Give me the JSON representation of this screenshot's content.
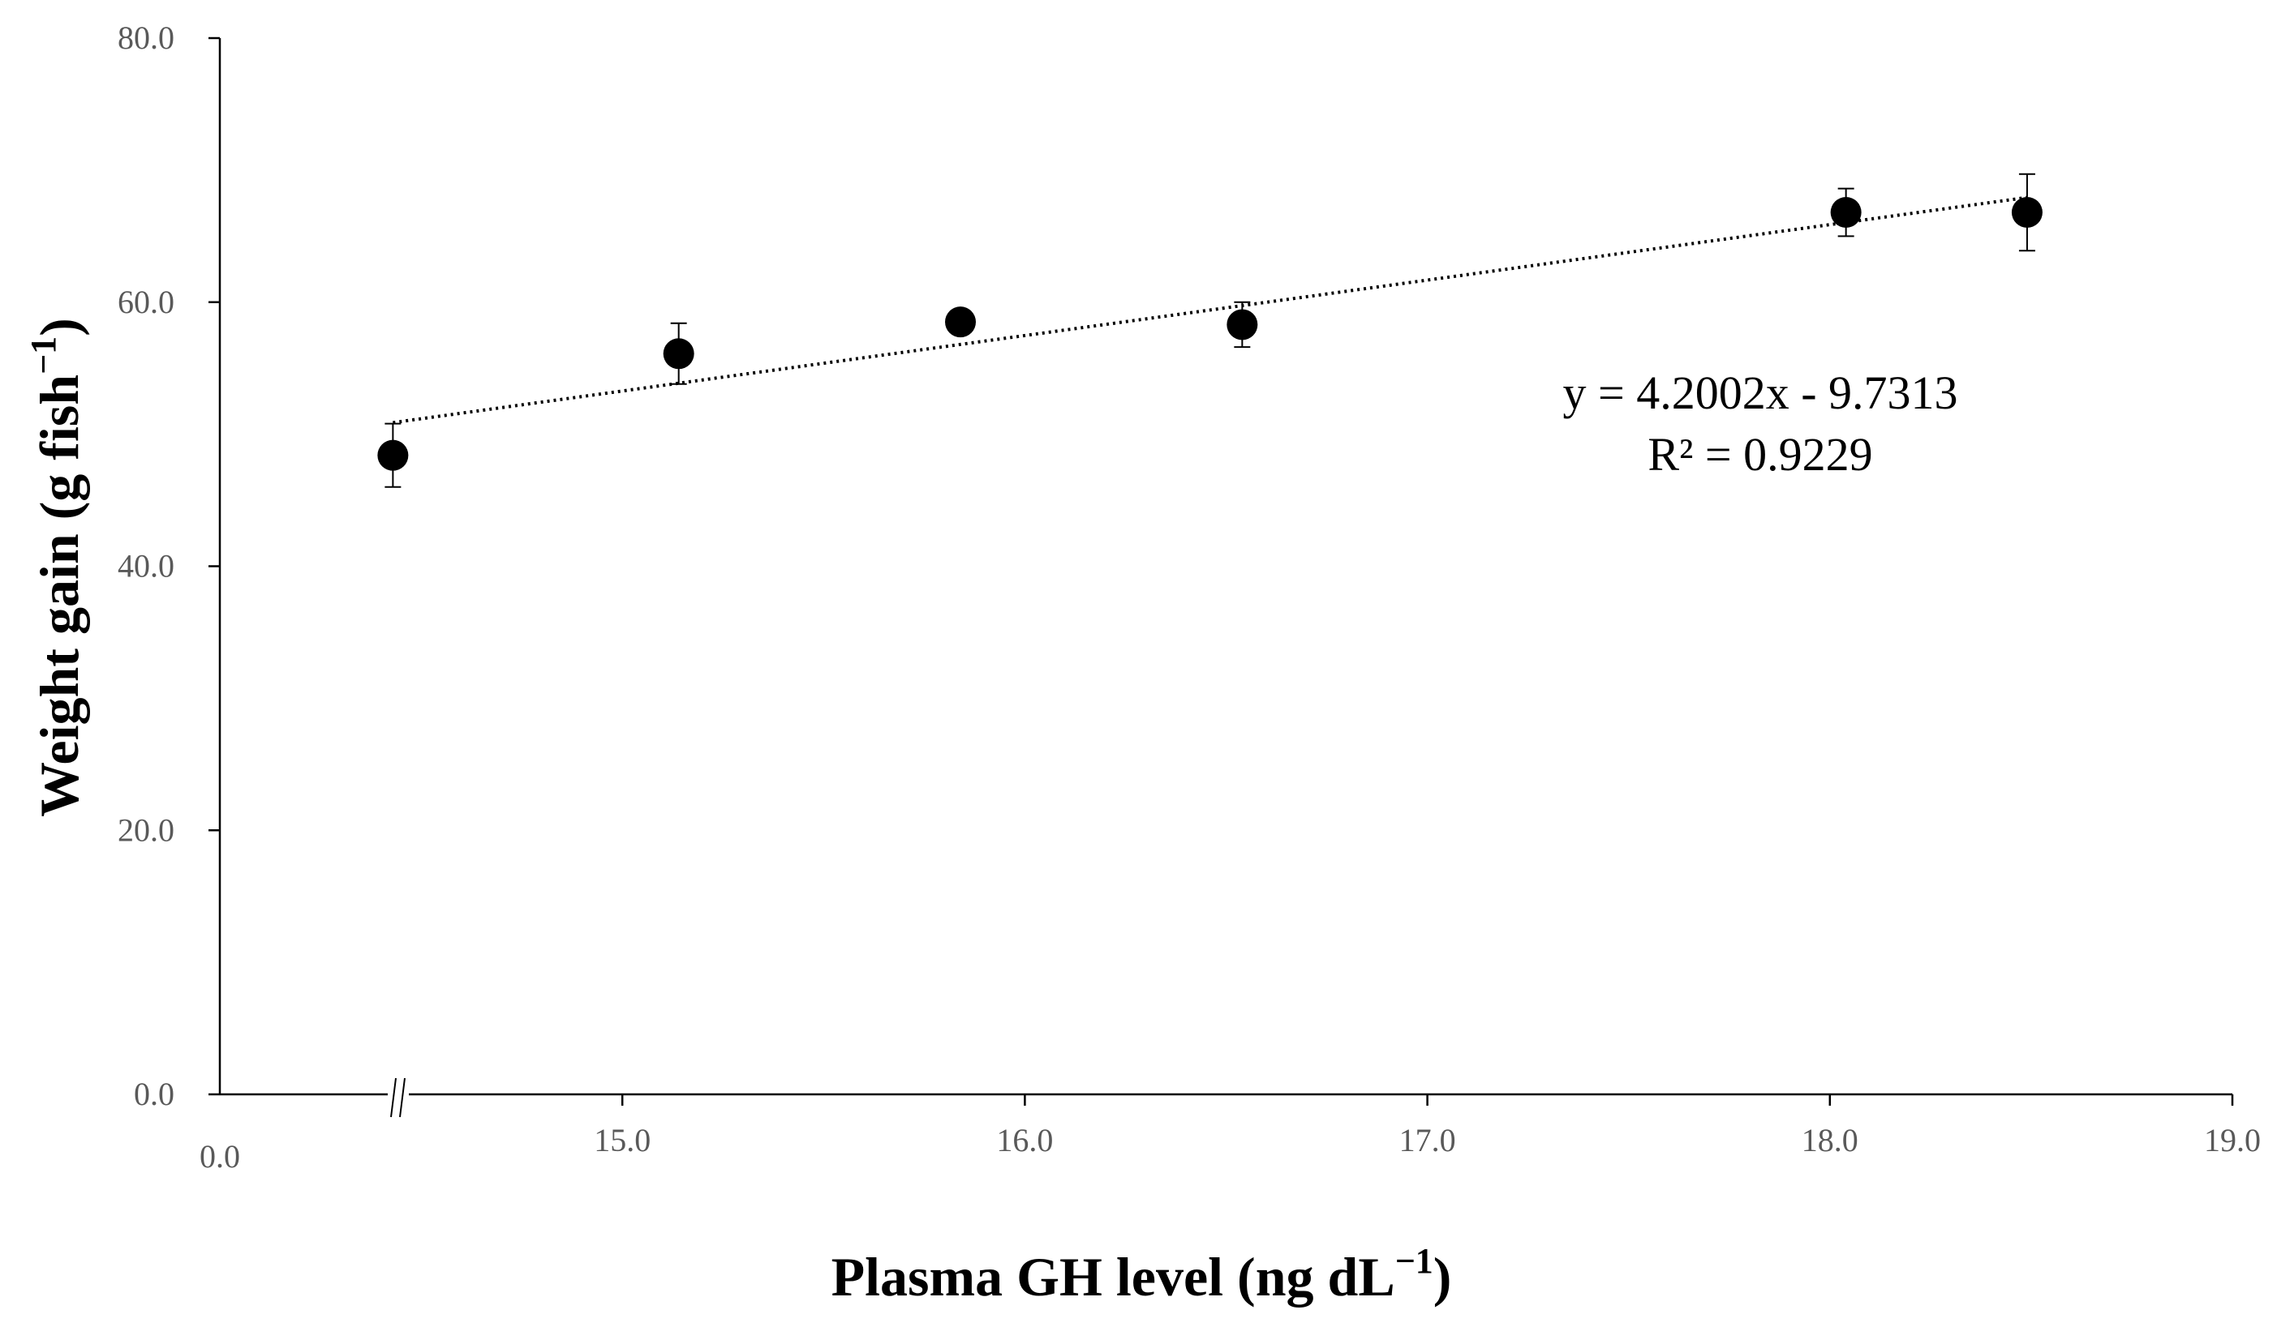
{
  "chart_data": {
    "type": "scatter",
    "title": "",
    "xlabel": "Plasma GH level (ng dL",
    "xlabel_sup": "−1",
    "xlabel_end": ")",
    "ylabel": "Weight gain (g fish",
    "ylabel_sup": "−1",
    "ylabel_end": ")",
    "x_break_origin": 14.0,
    "xlim": [
      14.0,
      19.0
    ],
    "ylim": [
      0,
      80
    ],
    "x_origin_label": "0.0",
    "x_ticks": [
      {
        "value": 15.0,
        "label": "15.0"
      },
      {
        "value": 16.0,
        "label": "16.0"
      },
      {
        "value": 17.0,
        "label": "17.0"
      },
      {
        "value": 18.0,
        "label": "18.0"
      },
      {
        "value": 19.0,
        "label": "19.0"
      }
    ],
    "y_ticks": [
      {
        "value": 0,
        "label": "0.0"
      },
      {
        "value": 20,
        "label": "20.0"
      },
      {
        "value": 40,
        "label": "40.0"
      },
      {
        "value": 60,
        "label": "60.0"
      },
      {
        "value": 80,
        "label": "80.0"
      }
    ],
    "series": [
      {
        "name": "Weight gain",
        "points": [
          {
            "x": 14.43,
            "y": 48.4,
            "err": 2.4
          },
          {
            "x": 15.14,
            "y": 56.1,
            "err": 2.3
          },
          {
            "x": 15.84,
            "y": 58.5,
            "err": 0.8
          },
          {
            "x": 16.54,
            "y": 58.3,
            "err": 1.7
          },
          {
            "x": 18.04,
            "y": 66.8,
            "err": 1.8
          },
          {
            "x": 18.49,
            "y": 66.8,
            "err": 2.9
          }
        ]
      }
    ],
    "trendline": {
      "slope": 4.2002,
      "intercept": -9.7313,
      "x_range": [
        14.43,
        18.49
      ],
      "equation": "y = 4.2002x - 9.7313",
      "r2_label": "R² = 0.9229"
    }
  }
}
